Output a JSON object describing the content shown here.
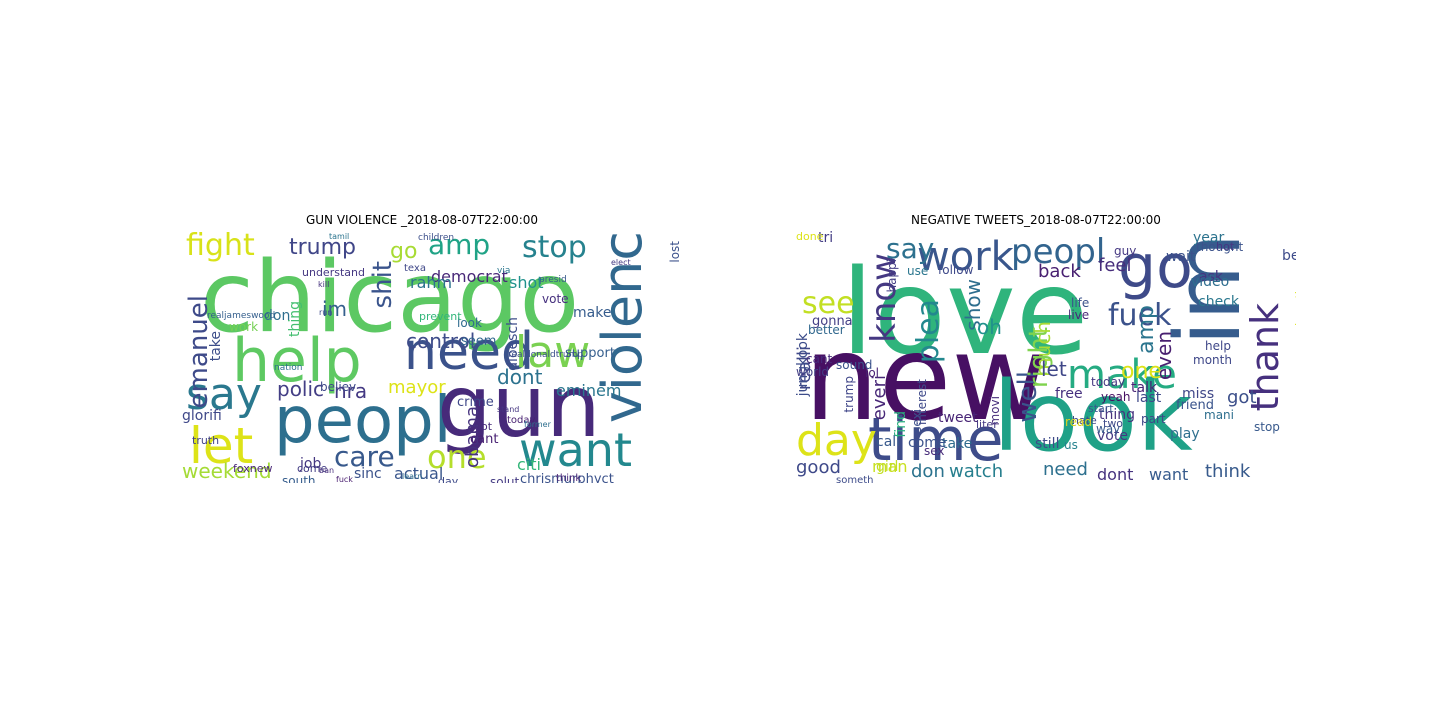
{
  "left_panel": {
    "title": "GUN VIOLENCE _2018-08-07T22:00:00",
    "words": [
      {
        "text": "chicago",
        "color": "#5cc863"
      },
      {
        "text": "peopl",
        "color": "#2d6f8e"
      },
      {
        "text": "gun",
        "color": "#472a7a"
      },
      {
        "text": "help",
        "color": "#5ec962"
      },
      {
        "text": "need",
        "color": "#3b528b"
      },
      {
        "text": "want",
        "color": "#23888e"
      },
      {
        "text": "say",
        "color": "#2a788e"
      },
      {
        "text": "violenc",
        "color": "#31688e"
      },
      {
        "text": "let",
        "color": "#dde318"
      },
      {
        "text": "fight",
        "color": "#d8e219"
      },
      {
        "text": "law",
        "color": "#7ad151"
      },
      {
        "text": "stop",
        "color": "#26828e"
      },
      {
        "text": "amp",
        "color": "#20a386"
      },
      {
        "text": "emanuel",
        "color": "#3e4a89"
      },
      {
        "text": "care",
        "color": "#38598c"
      },
      {
        "text": "one",
        "color": "#b5de2b"
      },
      {
        "text": "shit",
        "color": "#3a548c"
      },
      {
        "text": "control",
        "color": "#3e4c8a"
      },
      {
        "text": "trump",
        "color": "#404688"
      },
      {
        "text": "weekend",
        "color": "#a5db36"
      },
      {
        "text": "polic",
        "color": "#433e85"
      },
      {
        "text": "nra",
        "color": "#443983"
      },
      {
        "text": "go",
        "color": "#a8db34"
      },
      {
        "text": "dont",
        "color": "#2c728e"
      },
      {
        "text": "obama",
        "color": "#46327e"
      },
      {
        "text": "im",
        "color": "#355f8d"
      },
      {
        "text": "mayor",
        "color": "#dde318"
      },
      {
        "text": "actual",
        "color": "#39568c"
      },
      {
        "text": "democrat",
        "color": "#482878"
      },
      {
        "text": "shot",
        "color": "#20928c"
      },
      {
        "text": "rahm",
        "color": "#2c738e"
      },
      {
        "text": "eminem",
        "color": "#2a768e"
      },
      {
        "text": "citi",
        "color": "#34b679"
      },
      {
        "text": "job",
        "color": "#453781"
      },
      {
        "text": "sinc",
        "color": "#3b528b"
      },
      {
        "text": "glorifi",
        "color": "#3f4889"
      },
      {
        "text": "thing",
        "color": "#44bf70"
      },
      {
        "text": "don",
        "color": "#2e6e8e"
      },
      {
        "text": "take",
        "color": "#3d4e8a"
      },
      {
        "text": "vote",
        "color": "#46307e"
      },
      {
        "text": "make",
        "color": "#365c8d"
      },
      {
        "text": "support",
        "color": "#355e8d"
      },
      {
        "text": "crime",
        "color": "#3f4788"
      },
      {
        "text": "cant",
        "color": "#482173"
      },
      {
        "text": "chrismurphyct",
        "color": "#3b528b"
      },
      {
        "text": "understand",
        "color": "#453882"
      },
      {
        "text": "believ",
        "color": "#3e4989"
      },
      {
        "text": "look",
        "color": "#2f6b8e"
      },
      {
        "text": "seem",
        "color": "#31668e"
      },
      {
        "text": "work",
        "color": "#75d054"
      },
      {
        "text": "come",
        "color": "#433d84"
      },
      {
        "text": "south",
        "color": "#365d8d"
      },
      {
        "text": "foxnew",
        "color": "#482576"
      },
      {
        "text": "dloesch",
        "color": "#3d4d8a"
      },
      {
        "text": "lost",
        "color": "#3b518b"
      },
      {
        "text": "day",
        "color": "#3e4a89"
      },
      {
        "text": "solut",
        "color": "#443a83"
      },
      {
        "text": "think",
        "color": "#482475"
      },
      {
        "text": "truth",
        "color": "#414287"
      },
      {
        "text": "prevent",
        "color": "#32b67a"
      },
      {
        "text": "today",
        "color": "#482071"
      },
      {
        "text": "got",
        "color": "#472c7a"
      },
      {
        "text": "texa",
        "color": "#3f4788"
      },
      {
        "text": "children",
        "color": "#3c4f8a"
      },
      {
        "text": "realjameswood",
        "color": "#355f8d"
      },
      {
        "text": "nation",
        "color": "#2d708e"
      },
      {
        "text": "realdonaldtrump",
        "color": "#3c508b"
      },
      {
        "text": "presid",
        "color": "#38598c"
      },
      {
        "text": "via",
        "color": "#2a778e"
      },
      {
        "text": "former",
        "color": "#2e6f8e"
      },
      {
        "text": "stand",
        "color": "#453581"
      },
      {
        "text": "fuck",
        "color": "#481d6f"
      },
      {
        "text": "ban",
        "color": "#472d7b"
      },
      {
        "text": "run",
        "color": "#3e4c8a"
      },
      {
        "text": "tamil",
        "color": "#2b748e"
      },
      {
        "text": "elect",
        "color": "#453882"
      },
      {
        "text": "kill",
        "color": "#46327e"
      },
      {
        "text": "learn",
        "color": "#2e6d8e"
      },
      {
        "text": "anyth",
        "color": "#3f4889"
      }
    ]
  },
  "right_panel": {
    "title": "NEGATIVE TWEETS_2018-08-07T22:00:00",
    "words": [
      {
        "text": "love",
        "color": "#2fb47c"
      },
      {
        "text": "new",
        "color": "#471063"
      },
      {
        "text": "look",
        "color": "#1fa187"
      },
      {
        "text": "im",
        "color": "#365c8d"
      },
      {
        "text": "go",
        "color": "#3e4a89"
      },
      {
        "text": "time",
        "color": "#3e4c8a"
      },
      {
        "text": "day",
        "color": "#dde318"
      },
      {
        "text": "work",
        "color": "#39568c"
      },
      {
        "text": "peopl",
        "color": "#32648e"
      },
      {
        "text": "make",
        "color": "#25ab82"
      },
      {
        "text": "fuck",
        "color": "#3b528b"
      },
      {
        "text": "thank",
        "color": "#46307e"
      },
      {
        "text": "know",
        "color": "#453882"
      },
      {
        "text": "say",
        "color": "#2d718e"
      },
      {
        "text": "see",
        "color": "#c2df23"
      },
      {
        "text": "watch",
        "color": "#277f8e"
      },
      {
        "text": "dont",
        "color": "#46337f"
      },
      {
        "text": "want",
        "color": "#375b8d"
      },
      {
        "text": "think",
        "color": "#375a8c"
      },
      {
        "text": "need",
        "color": "#2d708e"
      },
      {
        "text": "don",
        "color": "#2c738e"
      },
      {
        "text": "good",
        "color": "#3e4989"
      },
      {
        "text": "man",
        "color": "#c8e020"
      },
      {
        "text": "one",
        "color": "#dde318"
      },
      {
        "text": "got",
        "color": "#3c4f8a"
      },
      {
        "text": "well",
        "color": "#3a548c"
      },
      {
        "text": "right",
        "color": "#7fd34e"
      },
      {
        "text": "plea",
        "color": "#23888e"
      },
      {
        "text": "much",
        "color": "#a8db34"
      },
      {
        "text": "everi",
        "color": "#482878"
      },
      {
        "text": "realli",
        "color": "#3f4788"
      },
      {
        "text": "amp",
        "color": "#2b758e"
      },
      {
        "text": "even",
        "color": "#481f70"
      },
      {
        "text": "let",
        "color": "#3f4788"
      },
      {
        "text": "show",
        "color": "#2e6e8e"
      },
      {
        "text": "oh",
        "color": "#20928c"
      },
      {
        "text": "back",
        "color": "#482071"
      },
      {
        "text": "feel",
        "color": "#472d7b"
      },
      {
        "text": "year",
        "color": "#2c738e"
      },
      {
        "text": "ask",
        "color": "#453581"
      },
      {
        "text": "video",
        "color": "#2e6d8e"
      },
      {
        "text": "check",
        "color": "#2a778e"
      },
      {
        "text": "jungkook",
        "color": "#3d4d8a"
      },
      {
        "text": "gonna",
        "color": "#433e85"
      },
      {
        "text": "tri",
        "color": "#433d84"
      },
      {
        "text": "free",
        "color": "#46307e"
      },
      {
        "text": "talk",
        "color": "#482475"
      },
      {
        "text": "miss",
        "color": "#3f4788"
      },
      {
        "text": "friend",
        "color": "#3a548c"
      },
      {
        "text": "last",
        "color": "#3e4989"
      },
      {
        "text": "play",
        "color": "#2e6f8e"
      },
      {
        "text": "vote",
        "color": "#453882"
      },
      {
        "text": "call",
        "color": "#38598c"
      },
      {
        "text": "take",
        "color": "#2f6b8e"
      },
      {
        "text": "come",
        "color": "#3b528b"
      },
      {
        "text": "us",
        "color": "#26828e"
      },
      {
        "text": "still",
        "color": "#3e4a89"
      },
      {
        "text": "tweet",
        "color": "#482576"
      },
      {
        "text": "girl",
        "color": "#c2df23"
      },
      {
        "text": "sex",
        "color": "#472c7a"
      },
      {
        "text": "find",
        "color": "#29af7f"
      },
      {
        "text": "best",
        "color": "#3e4c8a"
      },
      {
        "text": "wait",
        "color": "#3b518b"
      },
      {
        "text": "thing",
        "color": "#46327e"
      },
      {
        "text": "way",
        "color": "#38598c"
      },
      {
        "text": "part",
        "color": "#3f4788"
      },
      {
        "text": "life",
        "color": "#3b528b"
      },
      {
        "text": "world",
        "color": "#433e85"
      },
      {
        "text": "better",
        "color": "#31688e"
      },
      {
        "text": "cant",
        "color": "#472a7a"
      },
      {
        "text": "lol",
        "color": "#482173"
      },
      {
        "text": "trump",
        "color": "#404688"
      },
      {
        "text": "sexi",
        "color": "#3c4f8a"
      },
      {
        "text": "month",
        "color": "#3f4889"
      },
      {
        "text": "today",
        "color": "#453781"
      },
      {
        "text": "use",
        "color": "#2a768e"
      },
      {
        "text": "follow",
        "color": "#3e4989"
      },
      {
        "text": "live",
        "color": "#482878"
      },
      {
        "text": "happi",
        "color": "#433d84"
      },
      {
        "text": "sound",
        "color": "#3b528b"
      },
      {
        "text": "done",
        "color": "#dde318"
      },
      {
        "text": "yeah",
        "color": "#471063"
      },
      {
        "text": "hate",
        "color": "#3e4a89"
      },
      {
        "text": "start",
        "color": "#39568c"
      },
      {
        "text": "guy",
        "color": "#453882"
      },
      {
        "text": "read",
        "color": "#ddd21d"
      },
      {
        "text": "two",
        "color": "#3e4a89"
      },
      {
        "text": "beauti",
        "color": "#dde318"
      },
      {
        "text": "help",
        "color": "#3f4788"
      },
      {
        "text": "interest",
        "color": "#3e4989"
      },
      {
        "text": "thought",
        "color": "#3b528b"
      },
      {
        "text": "hot",
        "color": "#453781"
      },
      {
        "text": "stop",
        "color": "#38598c"
      },
      {
        "text": "mani",
        "color": "#2e6f8e"
      },
      {
        "text": "movi",
        "color": "#472d7b"
      },
      {
        "text": "someth",
        "color": "#3e4c8a"
      },
      {
        "text": "liter",
        "color": "#443983"
      }
    ]
  }
}
